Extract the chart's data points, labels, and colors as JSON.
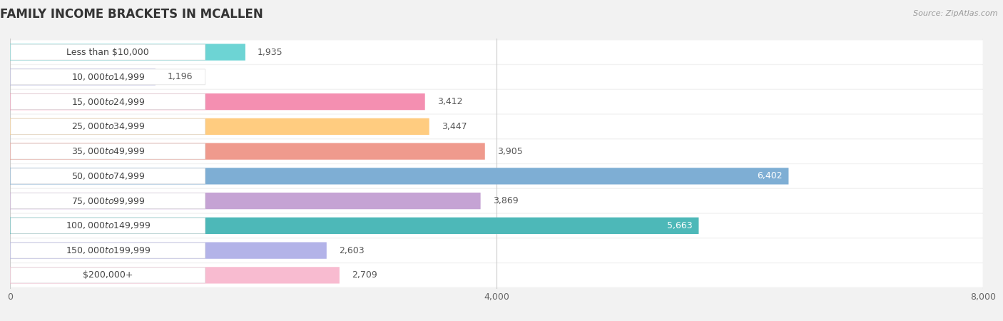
{
  "title": "FAMILY INCOME BRACKETS IN MCALLEN",
  "source": "Source: ZipAtlas.com",
  "categories": [
    "Less than $10,000",
    "$10,000 to $14,999",
    "$15,000 to $24,999",
    "$25,000 to $34,999",
    "$35,000 to $49,999",
    "$50,000 to $74,999",
    "$75,000 to $99,999",
    "$100,000 to $149,999",
    "$150,000 to $199,999",
    "$200,000+"
  ],
  "values": [
    1935,
    1196,
    3412,
    3447,
    3905,
    6402,
    3869,
    5663,
    2603,
    2709
  ],
  "colors": [
    "#6dd4d4",
    "#b3b3e0",
    "#f48fb1",
    "#ffcc80",
    "#ef9a8d",
    "#7eaed4",
    "#c5a3d4",
    "#4db8b8",
    "#b3b3e8",
    "#f8bbd0"
  ],
  "xlim": [
    0,
    8000
  ],
  "xticks": [
    0,
    4000,
    8000
  ],
  "bar_height": 0.65,
  "label_inside_threshold": 5000,
  "background_color": "#f2f2f2",
  "bar_bg_color": "#e8e8e8",
  "row_bg_color": "#f9f9f9",
  "title_fontsize": 12,
  "label_fontsize": 9,
  "tick_fontsize": 9,
  "value_fontsize": 9
}
